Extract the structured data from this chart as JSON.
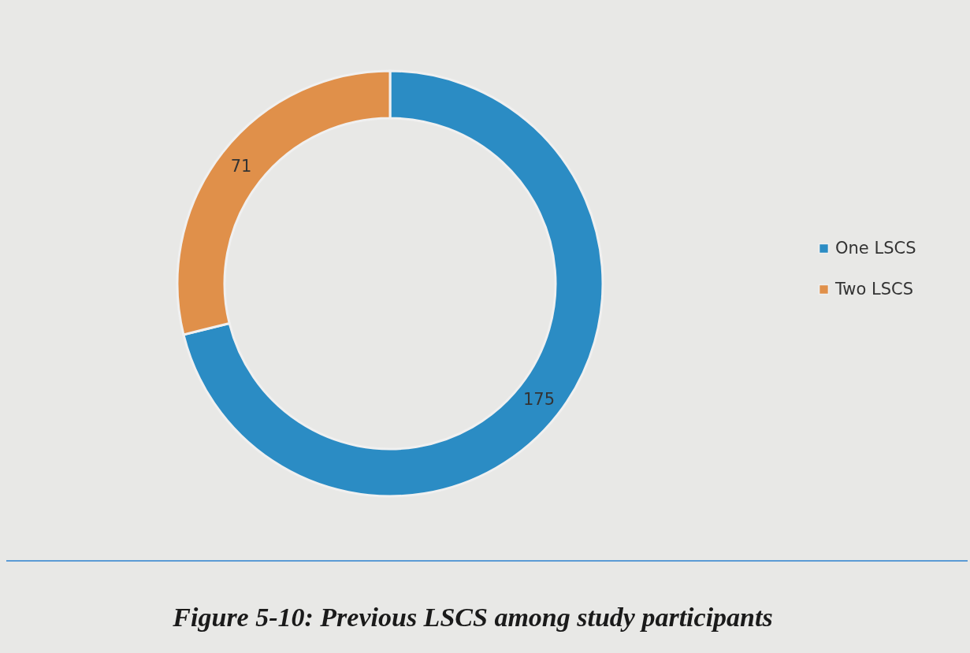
{
  "chart_data": {
    "type": "donut",
    "categories": [
      "One LSCS",
      "Two LSCS"
    ],
    "values": [
      175,
      71
    ],
    "colors": [
      "#2b8cc4",
      "#e0904a"
    ],
    "data_labels": true,
    "legend": "right",
    "annotations": [
      "Figure 5-10: Previous LSCS among study participants"
    ]
  }
}
